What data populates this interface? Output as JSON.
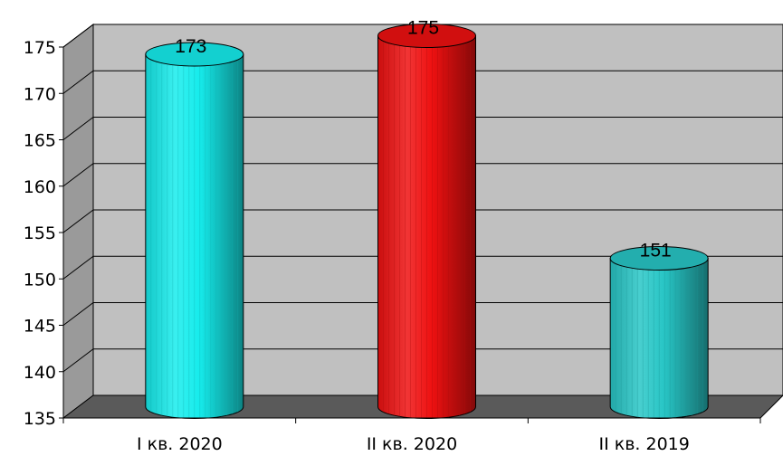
{
  "chart_data": {
    "type": "bar",
    "categories": [
      "I кв. 2020",
      "II кв. 2020",
      "II кв. 2019"
    ],
    "values": [
      173,
      175,
      151
    ],
    "colors": [
      "#16ecec",
      "#ee1111",
      "#28c6c6"
    ],
    "ylim": [
      135,
      175
    ],
    "yticks": [
      "135",
      "140",
      "145",
      "150",
      "155",
      "160",
      "165",
      "170",
      "175"
    ],
    "data_labels": [
      "173",
      "175",
      "151"
    ],
    "grid": true,
    "style": "3d-cylinder",
    "title": "",
    "xlabel": "",
    "ylabel": ""
  }
}
